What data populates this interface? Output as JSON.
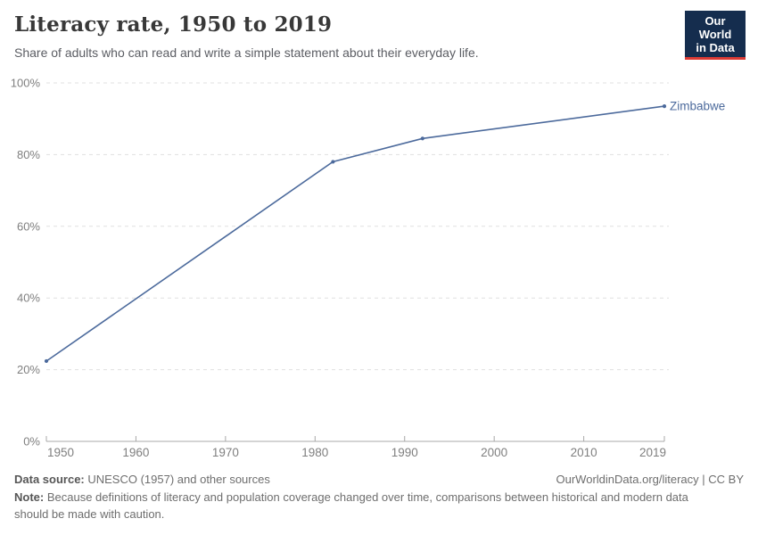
{
  "header": {
    "title": "Literacy rate, 1950 to 2019",
    "subtitle": "Share of adults who can read and write a simple statement about their everyday life.",
    "logo_line1": "Our World",
    "logo_line2": "in Data"
  },
  "chart_data": {
    "type": "line",
    "title": "Literacy rate, 1950 to 2019",
    "xlabel": "",
    "ylabel": "",
    "xlim": [
      1950,
      2019
    ],
    "ylim": [
      0,
      100
    ],
    "grid": "horizontal-dashed",
    "legend_position": "end-of-line-label",
    "x_ticks": [
      {
        "value": 1950,
        "label": "1950"
      },
      {
        "value": 1960,
        "label": "1960"
      },
      {
        "value": 1970,
        "label": "1970"
      },
      {
        "value": 1980,
        "label": "1980"
      },
      {
        "value": 1990,
        "label": "1990"
      },
      {
        "value": 2000,
        "label": "2000"
      },
      {
        "value": 2010,
        "label": "2010"
      },
      {
        "value": 2019,
        "label": "2019"
      }
    ],
    "y_ticks": [
      {
        "value": 0,
        "label": "0%"
      },
      {
        "value": 20,
        "label": "20%"
      },
      {
        "value": 40,
        "label": "40%"
      },
      {
        "value": 60,
        "label": "60%"
      },
      {
        "value": 80,
        "label": "80%"
      },
      {
        "value": 100,
        "label": "100%"
      }
    ],
    "series": [
      {
        "name": "Zimbabwe",
        "color": "#4c6a9c",
        "points": [
          {
            "x": 1950,
            "y": 22.4
          },
          {
            "x": 1982,
            "y": 78.0
          },
          {
            "x": 1992,
            "y": 84.5
          },
          {
            "x": 2019,
            "y": 93.5
          }
        ]
      }
    ]
  },
  "footer": {
    "data_source_label": "Data source:",
    "data_source_text": " UNESCO (1957) and other sources",
    "link_text": "OurWorldinData.org/literacy | CC BY",
    "note_label": "Note:",
    "note_text": " Because definitions of literacy and population coverage changed over time, comparisons between historical and modern data should be made with caution."
  },
  "colors": {
    "line": "#4c6a9c",
    "series_label": "#4c6a9c",
    "gridline": "#e0e0e0",
    "axis": "#a8a8a8",
    "tick_label": "#7f7f7f",
    "logo_bg": "#152d4e",
    "logo_accent": "#dc3a34"
  }
}
